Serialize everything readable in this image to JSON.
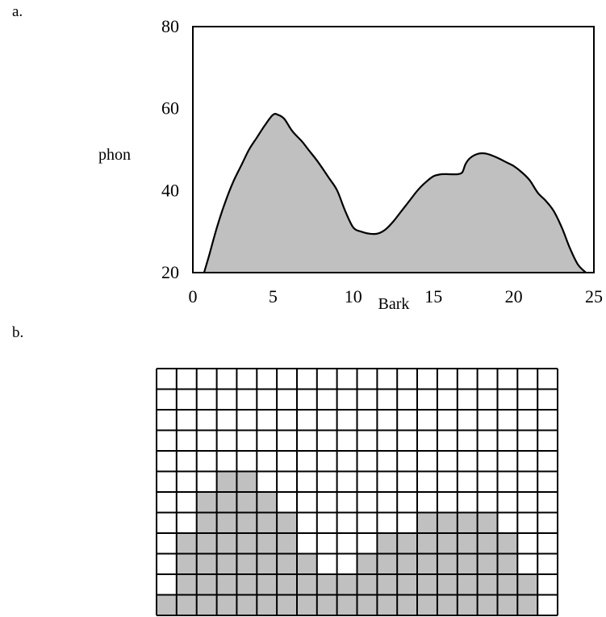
{
  "panels": {
    "a": {
      "label": "a."
    },
    "b": {
      "label": "b."
    }
  },
  "chart_data": [
    {
      "type": "area",
      "panel": "a",
      "xlabel": "Bark",
      "ylabel": "phon",
      "xlim": [
        0,
        25
      ],
      "ylim": [
        20,
        80
      ],
      "xticks": [
        "0",
        "5",
        "10",
        "15",
        "20",
        "25"
      ],
      "yticks": [
        "20",
        "40",
        "60",
        "80"
      ],
      "fill_color": "#c0c0c0",
      "grid": false,
      "series": [
        {
          "x": [
            0.7,
            1.0,
            1.5,
            2.0,
            2.5,
            3.0,
            3.5,
            4.0,
            4.5,
            5.0,
            5.3,
            5.7,
            6.2,
            6.8,
            7.2,
            7.8,
            8.5,
            9.0,
            9.5,
            10.0,
            10.5,
            11.0,
            11.5,
            12.0,
            12.5,
            13.0,
            13.5,
            14.0,
            14.5,
            15.0,
            15.5,
            16.0,
            16.5,
            16.8,
            17.0,
            17.3,
            17.8,
            18.3,
            19.0,
            19.5,
            20.0,
            20.5,
            21.0,
            21.5,
            22.0,
            22.5,
            23.0,
            23.5,
            24.0,
            24.5
          ],
          "y": [
            20,
            24,
            31,
            37,
            42,
            46,
            50,
            53,
            56,
            58.5,
            58.5,
            57.5,
            54.5,
            52,
            50,
            47,
            43,
            40,
            35,
            31,
            30,
            29.5,
            29.5,
            30.5,
            32.5,
            35,
            37.5,
            40,
            42,
            43.5,
            44,
            44,
            44,
            44.5,
            46.5,
            48,
            49,
            49,
            48,
            47,
            46,
            44.5,
            42.5,
            39.5,
            37.5,
            35,
            31,
            26,
            22,
            20
          ]
        }
      ]
    },
    {
      "type": "bar",
      "panel": "b",
      "grid": true,
      "grid_rows": 12,
      "fill_color": "#c0c0c0",
      "values": [
        1,
        4,
        6,
        7,
        7,
        6,
        5,
        3,
        2,
        2,
        3,
        4,
        4,
        5,
        5,
        5,
        5,
        4,
        2,
        0
      ]
    }
  ]
}
